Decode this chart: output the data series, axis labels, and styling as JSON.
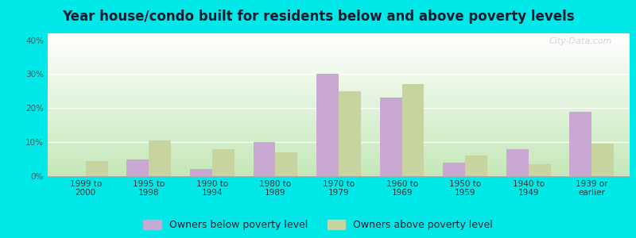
{
  "title": "Year house/condo built for residents below and above poverty levels",
  "categories": [
    "1999 to\n2000",
    "1995 to\n1998",
    "1990 to\n1994",
    "1980 to\n1989",
    "1970 to\n1979",
    "1960 to\n1969",
    "1950 to\n1959",
    "1940 to\n1949",
    "1939 or\nearlier"
  ],
  "below_poverty": [
    0.0,
    5.0,
    2.0,
    10.0,
    30.0,
    23.0,
    4.0,
    8.0,
    19.0
  ],
  "above_poverty": [
    4.5,
    10.5,
    8.0,
    7.0,
    25.0,
    27.0,
    6.0,
    3.5,
    9.5
  ],
  "below_color": "#c9a8d4",
  "above_color": "#c8d4a0",
  "outer_background": "#00e8e8",
  "ylim": [
    0,
    42
  ],
  "yticks": [
    0,
    10,
    20,
    30,
    40
  ],
  "bar_width": 0.35,
  "legend_below_label": "Owners below poverty level",
  "legend_above_label": "Owners above poverty level",
  "title_fontsize": 12,
  "tick_fontsize": 7.5,
  "legend_fontsize": 9,
  "watermark_text": "City-Data.com"
}
